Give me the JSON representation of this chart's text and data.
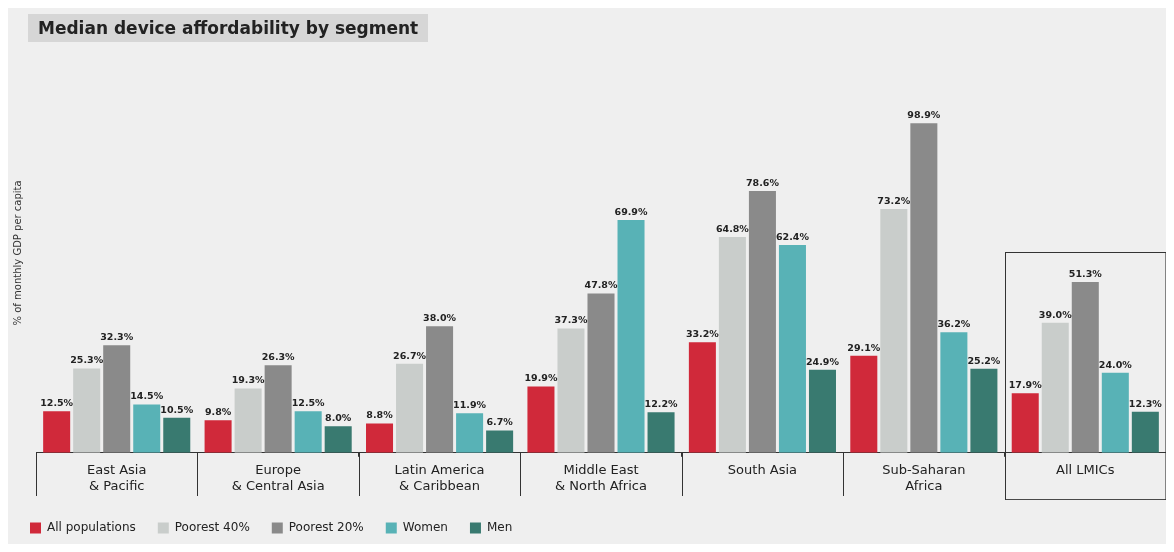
{
  "chart_data": {
    "type": "bar",
    "title": "Median device affordability by segment",
    "ylabel": "% of monthly GDP per capita",
    "categories": [
      "East Asia\n& Pacific",
      "Europe\n& Central Asia",
      "Latin America\n& Caribbean",
      "Middle East\n& North Africa",
      "South Asia",
      "Sub-Saharan\nAfrica",
      "All LMICs"
    ],
    "series": [
      {
        "name": "All populations",
        "color": "#d0293a",
        "values": [
          12.5,
          9.8,
          8.8,
          19.9,
          33.2,
          29.1,
          17.9
        ],
        "value_labels": [
          "12.5%",
          "9.8%",
          "8.8%",
          "19.9%",
          "33.2%",
          "29.1%",
          "17.9%"
        ]
      },
      {
        "name": "Poorest 40%",
        "color": "#c9cdcb",
        "values": [
          25.3,
          19.3,
          26.7,
          37.3,
          64.8,
          73.2,
          39.0
        ],
        "value_labels": [
          "25.3%",
          "19.3%",
          "26.7%",
          "37.3%",
          "64.8%",
          "73.2%",
          "39.0%"
        ]
      },
      {
        "name": "Poorest 20%",
        "color": "#8a8a8a",
        "values": [
          32.3,
          26.3,
          38.0,
          47.8,
          78.6,
          98.9,
          51.3
        ],
        "value_labels": [
          "32.3%",
          "26.3%",
          "38.0%",
          "47.8%",
          "78.6%",
          "98.9%",
          "51.3%"
        ]
      },
      {
        "name": "Women",
        "color": "#58b2b6",
        "values": [
          14.5,
          12.5,
          11.9,
          69.9,
          62.4,
          36.2,
          24.0
        ],
        "value_labels": [
          "14.5%",
          "12.5%",
          "11.9%",
          "69.9%",
          "62.4%",
          "36.2%",
          "24.0%"
        ]
      },
      {
        "name": "Men",
        "color": "#397a70",
        "values": [
          10.5,
          8.0,
          6.7,
          12.2,
          24.9,
          25.2,
          12.3
        ],
        "value_labels": [
          "10.5%",
          "8.0%",
          "6.7%",
          "12.2%",
          "24.9%",
          "25.2%",
          "12.3%"
        ]
      }
    ],
    "legend": "bottom left",
    "grid": false
  }
}
